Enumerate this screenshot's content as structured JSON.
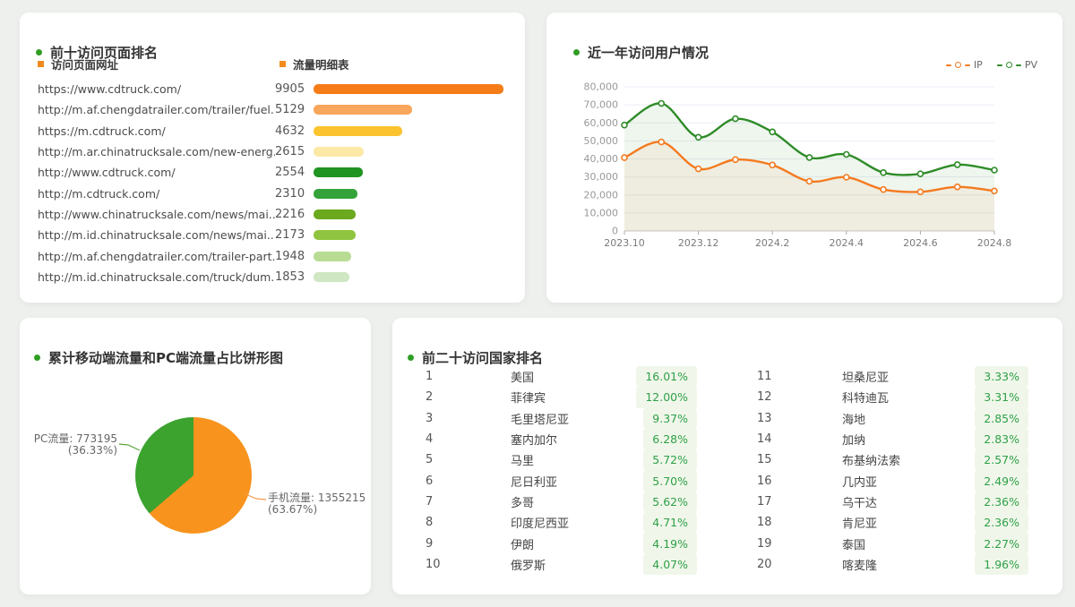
{
  "page": {
    "background": "#eef0ee",
    "accent_green": "#2f9e23",
    "accent_orange": "#f28a1c"
  },
  "panels": {
    "top_pages": {
      "title": "前十访问页面排名",
      "col_url": "访问页面网址",
      "col_flow": "流量明细表"
    },
    "yearly": {
      "title": "近一年访问用户情况",
      "legend": [
        "IP",
        "PV"
      ]
    },
    "pie": {
      "title": "累计移动端流量和PC端流量占比饼形图",
      "labels": {
        "pc_line1": "PC流量: 773195",
        "pc_line2": "(36.33%)",
        "mobile_line1": "手机流量: 1355215",
        "mobile_line2": "(63.67%)"
      }
    },
    "countries": {
      "title": "前二十访问国家排名"
    }
  },
  "chart_data": [
    {
      "type": "bar",
      "orientation": "horizontal",
      "title": "前十访问页面排名",
      "max": 9905,
      "rows": [
        {
          "url": "https://www.cdtruck.com/",
          "value": 9905,
          "color": "#f57c17"
        },
        {
          "url": "http://m.af.chengdatrailer.com/trailer/fuel...",
          "value": 5129,
          "color": "#f8a65c"
        },
        {
          "url": "https://m.cdtruck.com/",
          "value": 4632,
          "color": "#fbc42e"
        },
        {
          "url": "http://m.ar.chinatrucksale.com/new-energ...",
          "value": 2615,
          "color": "#fce9a6"
        },
        {
          "url": "http://www.cdtruck.com/",
          "value": 2554,
          "color": "#1f9421"
        },
        {
          "url": "http://m.cdtruck.com/",
          "value": 2310,
          "color": "#33a339"
        },
        {
          "url": "http://www.chinatrucksale.com/news/mai...",
          "value": 2216,
          "color": "#6ba91e"
        },
        {
          "url": "http://m.id.chinatrucksale.com/news/mai...",
          "value": 2173,
          "color": "#8fc440"
        },
        {
          "url": "http://m.af.chengdatrailer.com/trailer-part...",
          "value": 1948,
          "color": "#b9dc94"
        },
        {
          "url": "http://m.id.chinatrucksale.com/truck/dum...",
          "value": 1853,
          "color": "#cfe7c2"
        }
      ]
    },
    {
      "type": "line",
      "title": "近一年访问用户情况",
      "x": [
        "2023.10",
        "2023.11",
        "2023.12",
        "2024.1",
        "2024.2",
        "2024.3",
        "2024.4",
        "2024.5",
        "2024.6",
        "2024.7",
        "2024.8"
      ],
      "x_ticks_shown": [
        "2023.10",
        "2023.12",
        "2024.2",
        "2024.4",
        "2024.6",
        "2024.8"
      ],
      "ylim": [
        0,
        80000
      ],
      "y_tick_step": 10000,
      "grid": true,
      "legend_position": "top-right",
      "series": [
        {
          "name": "IP",
          "color": "#f47a20",
          "fill": "rgba(244,122,32,0.07)",
          "values": [
            40700,
            49400,
            34500,
            39600,
            36600,
            27600,
            29800,
            23000,
            21700,
            24500,
            22200
          ]
        },
        {
          "name": "PV",
          "color": "#2e8b27",
          "fill": "rgba(46,139,39,0.08)",
          "values": [
            58800,
            70800,
            52000,
            62300,
            55000,
            40800,
            42500,
            32400,
            31700,
            36800,
            33800
          ]
        }
      ]
    },
    {
      "type": "pie",
      "title": "累计移动端流量和PC端流量占比饼形图",
      "slices": [
        {
          "label": "手机流量",
          "value": 1355215,
          "percent": "63.67%",
          "color": "#f8931d"
        },
        {
          "label": "PC流量",
          "value": 773195,
          "percent": "36.33%",
          "color": "#3ba32e"
        }
      ]
    },
    {
      "type": "table",
      "title": "前二十访问国家排名",
      "rows": [
        {
          "rank": 1,
          "country": "美国",
          "percent": "16.01%"
        },
        {
          "rank": 2,
          "country": "菲律宾",
          "percent": "12.00%"
        },
        {
          "rank": 3,
          "country": "毛里塔尼亚",
          "percent": "9.37%"
        },
        {
          "rank": 4,
          "country": "塞内加尔",
          "percent": "6.28%"
        },
        {
          "rank": 5,
          "country": "马里",
          "percent": "5.72%"
        },
        {
          "rank": 6,
          "country": "尼日利亚",
          "percent": "5.70%"
        },
        {
          "rank": 7,
          "country": "多哥",
          "percent": "5.62%"
        },
        {
          "rank": 8,
          "country": "印度尼西亚",
          "percent": "4.71%"
        },
        {
          "rank": 9,
          "country": "伊朗",
          "percent": "4.19%"
        },
        {
          "rank": 10,
          "country": "俄罗斯",
          "percent": "4.07%"
        },
        {
          "rank": 11,
          "country": "坦桑尼亚",
          "percent": "3.33%"
        },
        {
          "rank": 12,
          "country": "科特迪瓦",
          "percent": "3.31%"
        },
        {
          "rank": 13,
          "country": "海地",
          "percent": "2.85%"
        },
        {
          "rank": 14,
          "country": "加纳",
          "percent": "2.83%"
        },
        {
          "rank": 15,
          "country": "布基纳法索",
          "percent": "2.57%"
        },
        {
          "rank": 16,
          "country": "几内亚",
          "percent": "2.49%"
        },
        {
          "rank": 17,
          "country": "乌干达",
          "percent": "2.36%"
        },
        {
          "rank": 18,
          "country": "肯尼亚",
          "percent": "2.36%"
        },
        {
          "rank": 19,
          "country": "泰国",
          "percent": "2.27%"
        },
        {
          "rank": 20,
          "country": "喀麦隆",
          "percent": "1.96%"
        }
      ]
    }
  ]
}
